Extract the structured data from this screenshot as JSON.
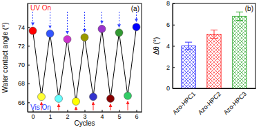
{
  "chart_data": [
    {
      "type": "line",
      "title": "(a)",
      "annotations": [
        "UV On",
        "Vis On"
      ],
      "x_label": "Cycles",
      "y_label": "Water contact angle (°)",
      "x": [
        0,
        0.5,
        1,
        1.5,
        2,
        2.5,
        3,
        3.5,
        4,
        4.5,
        5,
        5.5,
        6
      ],
      "series": [
        {
          "color": "#000000",
          "marker": "circle",
          "colors": [
            "#ff0000",
            "#ffff33",
            "#3355ff",
            "#66ffff",
            "#cc33cc",
            "#ffff00",
            "#999900",
            "#3333cc",
            "#9933cc",
            "#880000",
            "#339933",
            "#33cc66",
            "#0000ff"
          ],
          "values": [
            73.6,
            66.6,
            73.3,
            66.4,
            72.7,
            66.1,
            72.9,
            66.6,
            73.8,
            66.4,
            73.4,
            66.7,
            74.0
          ]
        }
      ],
      "xlim": [
        -0.3,
        6.3
      ],
      "xticks": [
        0,
        1,
        2,
        3,
        4,
        5,
        6
      ],
      "ylim": [
        65,
        76.5
      ],
      "yticks": [
        66,
        68,
        70,
        72,
        74
      ]
    },
    {
      "type": "bar",
      "title": "(b)",
      "y_label": "Δθ (°)",
      "categories": [
        "Azo-HPC1",
        "Azo-HPC2",
        "Azo-HPC3"
      ],
      "values": [
        4.0,
        5.1,
        6.8
      ],
      "errors": [
        0.35,
        0.4,
        0.4
      ],
      "colors": [
        "#3333ff",
        "#ff3333",
        "#33aa33"
      ],
      "ylim": [
        0,
        8
      ],
      "yticks": [
        0,
        2,
        4,
        6,
        8
      ]
    }
  ]
}
